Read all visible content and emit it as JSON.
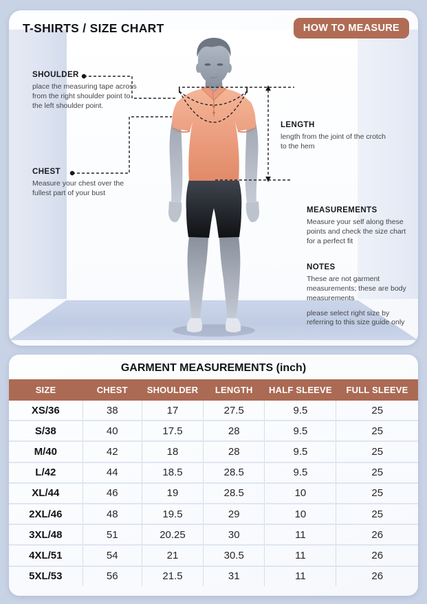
{
  "header": {
    "title": "T-SHIRTS / SIZE CHART",
    "badge": "HOW TO MEASURE"
  },
  "annotations": {
    "shoulder": {
      "label": "SHOULDER",
      "text": "place the measuring tape across from the right shoulder point to the left shoulder point."
    },
    "chest": {
      "label": "CHEST",
      "text": "Measure your chest over the fullest part of your bust"
    },
    "length": {
      "label": "LENGTH",
      "text": "length from the joint of the crotch to the hem"
    },
    "measurements": {
      "label": "MEASUREMENTS",
      "text": "Measure your self along these points and check the size chart for a perfect fit"
    },
    "notes": {
      "label": "NOTES",
      "text1": "These are not garment measurements; these are body measurements",
      "text2": "please select right size by referring to this size guide only"
    }
  },
  "table": {
    "title": "GARMENT MEASUREMENTS (inch)",
    "headers": [
      "SIZE",
      "CHEST",
      "SHOULDER",
      "LENGTH",
      "HALF SLEEVE",
      "FULL SLEEVE"
    ],
    "rows": [
      [
        "XS/36",
        "38",
        "17",
        "27.5",
        "9.5",
        "25"
      ],
      [
        "S/38",
        "40",
        "17.5",
        "28",
        "9.5",
        "25"
      ],
      [
        "M/40",
        "42",
        "18",
        "28",
        "9.5",
        "25"
      ],
      [
        "L/42",
        "44",
        "18.5",
        "28.5",
        "9.5",
        "25"
      ],
      [
        "XL/44",
        "46",
        "19",
        "28.5",
        "10",
        "25"
      ],
      [
        "2XL/46",
        "48",
        "19.5",
        "29",
        "10",
        "25"
      ],
      [
        "3XL/48",
        "51",
        "20.25",
        "30",
        "11",
        "26"
      ],
      [
        "4XL/51",
        "54",
        "21",
        "30.5",
        "11",
        "26"
      ],
      [
        "5XL/53",
        "56",
        "21.5",
        "31",
        "11",
        "26"
      ]
    ]
  },
  "colors": {
    "page_background": "#c9d3e6",
    "accent_brown": "#ab6a54",
    "badge_brown": "#b06c55",
    "shirt_salmon": "#eda183",
    "card_white": "#fdfdfe"
  }
}
